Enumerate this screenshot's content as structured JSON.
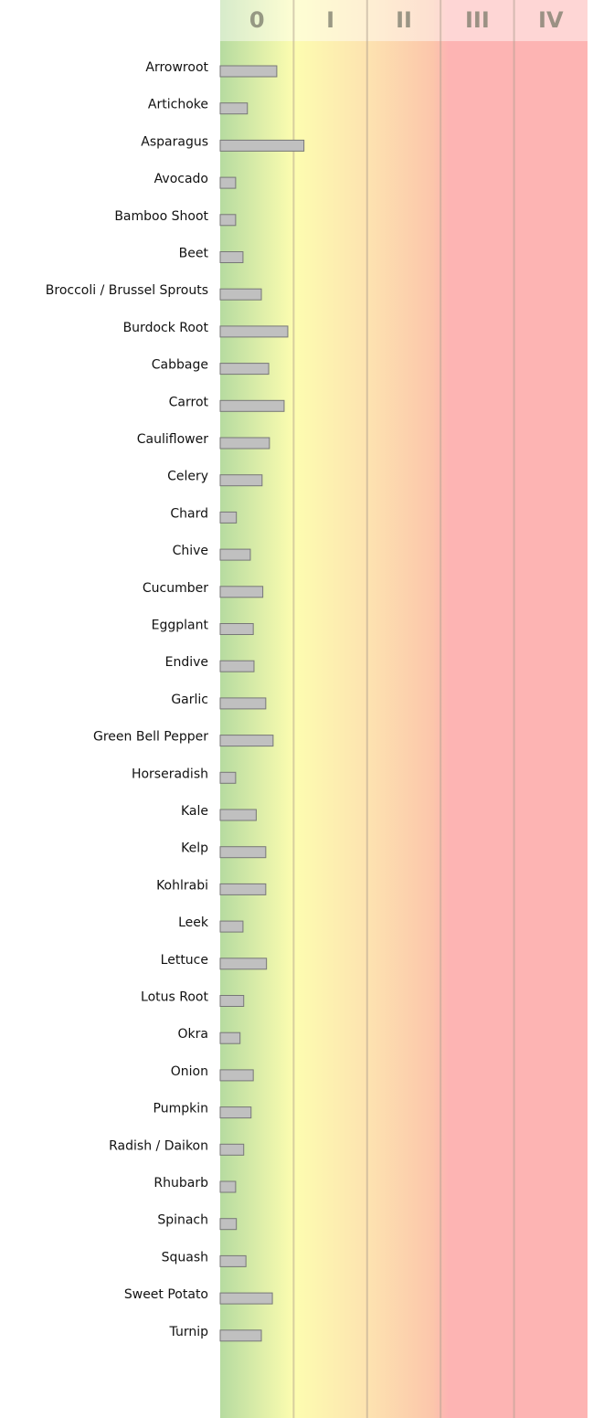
{
  "chart_data": {
    "type": "hbar",
    "categories": [
      "Arrowroot",
      "Artichoke",
      "Asparagus",
      "Avocado",
      "Bamboo Shoot",
      "Beet",
      "Broccoli / Brussel Sprouts",
      "Burdock Root",
      "Cabbage",
      "Carrot",
      "Cauliflower",
      "Celery",
      "Chard",
      "Chive",
      "Cucumber",
      "Eggplant",
      "Endive",
      "Garlic",
      "Green Bell Pepper",
      "Horseradish",
      "Kale",
      "Kelp",
      "Kohlrabi",
      "Leek",
      "Lettuce",
      "Lotus Root",
      "Okra",
      "Onion",
      "Pumpkin",
      "Radish / Daikon",
      "Rhubarb",
      "Spinach",
      "Squash",
      "Sweet Potato",
      "Turnip"
    ],
    "values": [
      0.77,
      0.37,
      1.14,
      0.21,
      0.21,
      0.31,
      0.56,
      0.92,
      0.66,
      0.87,
      0.67,
      0.57,
      0.22,
      0.41,
      0.58,
      0.45,
      0.46,
      0.62,
      0.72,
      0.21,
      0.49,
      0.62,
      0.62,
      0.31,
      0.63,
      0.32,
      0.27,
      0.45,
      0.42,
      0.32,
      0.21,
      0.22,
      0.35,
      0.71,
      0.56
    ],
    "color": "#c0c0c0",
    "xlim": [
      0,
      5
    ],
    "xticks": [
      {
        "value": 0.5,
        "label": "0"
      },
      {
        "value": 1.5,
        "label": "I"
      },
      {
        "value": 2.5,
        "label": "II"
      },
      {
        "value": 3.5,
        "label": "III"
      },
      {
        "value": 4.5,
        "label": "IV"
      }
    ],
    "xgrid": [
      1,
      2,
      3,
      4
    ]
  }
}
